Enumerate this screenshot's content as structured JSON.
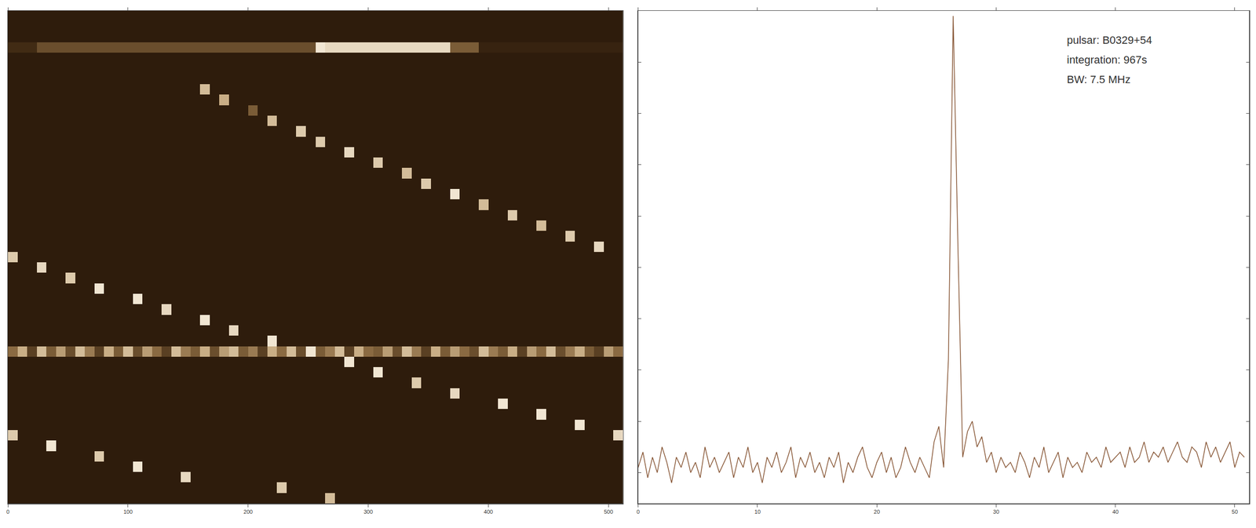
{
  "chart_data": [
    {
      "type": "heatmap",
      "xlim": [
        0,
        512
      ],
      "xticks": [
        0,
        100,
        200,
        300,
        400,
        500
      ],
      "ylim": [
        47,
        0
      ],
      "tick_labels": "x",
      "columns": 64,
      "rows": 47,
      "background": 0.2,
      "zlim": [
        0,
        1
      ],
      "bands": [
        {
          "row": 3,
          "values": [
            0.3,
            0.3,
            0.3,
            0.45,
            0.45,
            0.45,
            0.45,
            0.45,
            0.45,
            0.45,
            0.45,
            0.45,
            0.45,
            0.45,
            0.45,
            0.45,
            0.45,
            0.45,
            0.45,
            0.45,
            0.45,
            0.45,
            0.45,
            0.45,
            0.45,
            0.45,
            0.45,
            0.45,
            0.45,
            0.45,
            0.45,
            0.45,
            0.95,
            0.9,
            0.9,
            0.9,
            0.9,
            0.9,
            0.9,
            0.9,
            0.9,
            0.9,
            0.9,
            0.9,
            0.9,
            0.9,
            0.5,
            0.5,
            0.5,
            0.25,
            0.25,
            0.25,
            0.25,
            0.25,
            0.25,
            0.25,
            0.25,
            0.25,
            0.25,
            0.25,
            0.25,
            0.25,
            0.25,
            0.25
          ]
        },
        {
          "row": 32,
          "values": [
            0.55,
            0.75,
            0.4,
            0.8,
            0.5,
            0.7,
            0.45,
            0.8,
            0.6,
            0.4,
            0.75,
            0.5,
            0.8,
            0.45,
            0.7,
            0.55,
            0.4,
            0.8,
            0.6,
            0.5,
            0.75,
            0.45,
            0.7,
            0.8,
            0.5,
            0.6,
            0.4,
            0.75,
            0.55,
            0.8,
            0.45,
            0.7,
            0.5,
            0.6,
            0.8,
            0.4,
            0.75,
            0.55,
            0.5,
            0.7,
            0.45,
            0.8,
            0.6,
            0.4,
            0.75,
            0.5,
            0.7,
            0.55,
            0.45,
            0.8,
            0.6,
            0.5,
            0.75,
            0.4,
            0.7,
            0.55,
            0.8,
            0.45,
            0.6,
            0.75,
            0.5,
            0.4,
            0.7,
            0.55
          ]
        }
      ],
      "cells": [
        [
          20,
          7,
          0.8
        ],
        [
          22,
          8,
          0.75
        ],
        [
          25,
          9,
          0.5
        ],
        [
          27,
          10,
          0.8
        ],
        [
          30,
          11,
          0.85
        ],
        [
          32,
          12,
          0.85
        ],
        [
          35,
          13,
          0.9
        ],
        [
          38,
          14,
          0.85
        ],
        [
          41,
          15,
          0.8
        ],
        [
          43,
          16,
          0.85
        ],
        [
          46,
          17,
          0.95
        ],
        [
          49,
          18,
          0.8
        ],
        [
          52,
          19,
          0.85
        ],
        [
          55,
          20,
          0.8
        ],
        [
          58,
          21,
          0.85
        ],
        [
          61,
          22,
          0.9
        ],
        [
          0,
          23,
          0.85
        ],
        [
          3,
          24,
          0.9
        ],
        [
          6,
          25,
          0.85
        ],
        [
          9,
          26,
          0.95
        ],
        [
          13,
          27,
          0.95
        ],
        [
          16,
          28,
          0.9
        ],
        [
          20,
          29,
          0.95
        ],
        [
          23,
          30,
          0.9
        ],
        [
          27,
          31,
          0.95
        ],
        [
          31,
          32,
          0.95
        ],
        [
          35,
          33,
          0.95
        ],
        [
          38,
          34,
          0.95
        ],
        [
          42,
          35,
          0.85
        ],
        [
          46,
          36,
          0.9
        ],
        [
          51,
          37,
          0.95
        ],
        [
          55,
          38,
          0.95
        ],
        [
          59,
          39,
          0.95
        ],
        [
          63,
          40,
          0.9
        ],
        [
          0,
          40,
          0.85
        ],
        [
          4,
          41,
          0.95
        ],
        [
          9,
          42,
          0.85
        ],
        [
          13,
          43,
          0.95
        ],
        [
          18,
          44,
          0.9
        ],
        [
          28,
          45,
          0.85
        ],
        [
          33,
          46,
          0.8
        ]
      ]
    },
    {
      "type": "line",
      "xlim": [
        0,
        51.2
      ],
      "xticks": [
        0,
        10,
        20,
        30,
        40,
        50
      ],
      "ylim": [
        0.4,
        10
      ],
      "yticks": [
        1,
        2,
        3,
        4,
        5,
        6,
        7,
        8,
        9
      ],
      "tick_labels": "x",
      "color": "#8a5a3a",
      "annotations": [
        "pulsar: B0329+54",
        "integration: 967s",
        "BW: 7.5 MHz"
      ],
      "x": [
        0,
        0.4,
        0.8,
        1.2,
        1.6,
        2,
        2.4,
        2.8,
        3.2,
        3.6,
        4,
        4.4,
        4.8,
        5.2,
        5.6,
        6,
        6.4,
        6.8,
        7.2,
        7.6,
        8,
        8.4,
        8.8,
        9.2,
        9.6,
        10,
        10.4,
        10.8,
        11.2,
        11.6,
        12,
        12.4,
        12.8,
        13.2,
        13.6,
        14,
        14.4,
        14.8,
        15.2,
        15.6,
        16,
        16.4,
        16.8,
        17.2,
        17.6,
        18,
        18.4,
        18.8,
        19.2,
        19.6,
        20,
        20.4,
        20.8,
        21.2,
        21.6,
        22,
        22.4,
        22.8,
        23.2,
        23.6,
        24,
        24.4,
        24.8,
        25.2,
        25.6,
        26,
        26.4,
        26.8,
        27.2,
        27.6,
        28,
        28.4,
        28.8,
        29.2,
        29.6,
        30,
        30.4,
        30.8,
        31.2,
        31.6,
        32,
        32.4,
        32.8,
        33.2,
        33.6,
        34,
        34.4,
        34.8,
        35.2,
        35.6,
        36,
        36.4,
        36.8,
        37.2,
        37.6,
        38,
        38.4,
        38.8,
        39.2,
        39.6,
        40,
        40.4,
        40.8,
        41.2,
        41.6,
        42,
        42.4,
        42.8,
        43.2,
        43.6,
        44,
        44.4,
        44.8,
        45.2,
        45.6,
        46,
        46.4,
        46.8,
        47.2,
        47.6,
        48,
        48.4,
        48.8,
        49.2,
        49.6,
        50,
        50.4,
        50.8
      ],
      "values": [
        1.1,
        1.4,
        0.9,
        1.3,
        1.0,
        1.5,
        1.2,
        0.8,
        1.3,
        1.1,
        1.4,
        1.0,
        1.2,
        0.9,
        1.5,
        1.1,
        1.3,
        1.0,
        1.2,
        1.4,
        0.9,
        1.3,
        1.1,
        1.5,
        1.0,
        1.2,
        0.8,
        1.3,
        1.1,
        1.4,
        1.0,
        1.2,
        1.5,
        0.9,
        1.3,
        1.1,
        1.4,
        1.0,
        1.2,
        0.9,
        1.3,
        1.1,
        1.4,
        0.8,
        1.2,
        1.0,
        1.3,
        1.5,
        1.1,
        0.9,
        1.2,
        1.4,
        1.0,
        1.3,
        0.9,
        1.1,
        1.5,
        1.2,
        1.0,
        1.3,
        1.1,
        0.9,
        1.6,
        1.9,
        1.1,
        3.2,
        9.9,
        5.4,
        1.3,
        1.8,
        2.0,
        1.5,
        1.7,
        1.2,
        1.4,
        1.0,
        1.3,
        1.1,
        1.2,
        1.0,
        1.4,
        1.2,
        0.9,
        1.3,
        1.1,
        1.5,
        1.0,
        1.2,
        1.4,
        0.9,
        1.3,
        1.1,
        1.2,
        1.0,
        1.4,
        1.2,
        1.3,
        1.1,
        1.5,
        1.2,
        1.3,
        1.4,
        1.1,
        1.5,
        1.2,
        1.3,
        1.6,
        1.2,
        1.4,
        1.3,
        1.5,
        1.2,
        1.4,
        1.6,
        1.3,
        1.2,
        1.5,
        1.4,
        1.1,
        1.6,
        1.3,
        1.5,
        1.2,
        1.4,
        1.6,
        1.1,
        1.4,
        1.3
      ]
    }
  ]
}
